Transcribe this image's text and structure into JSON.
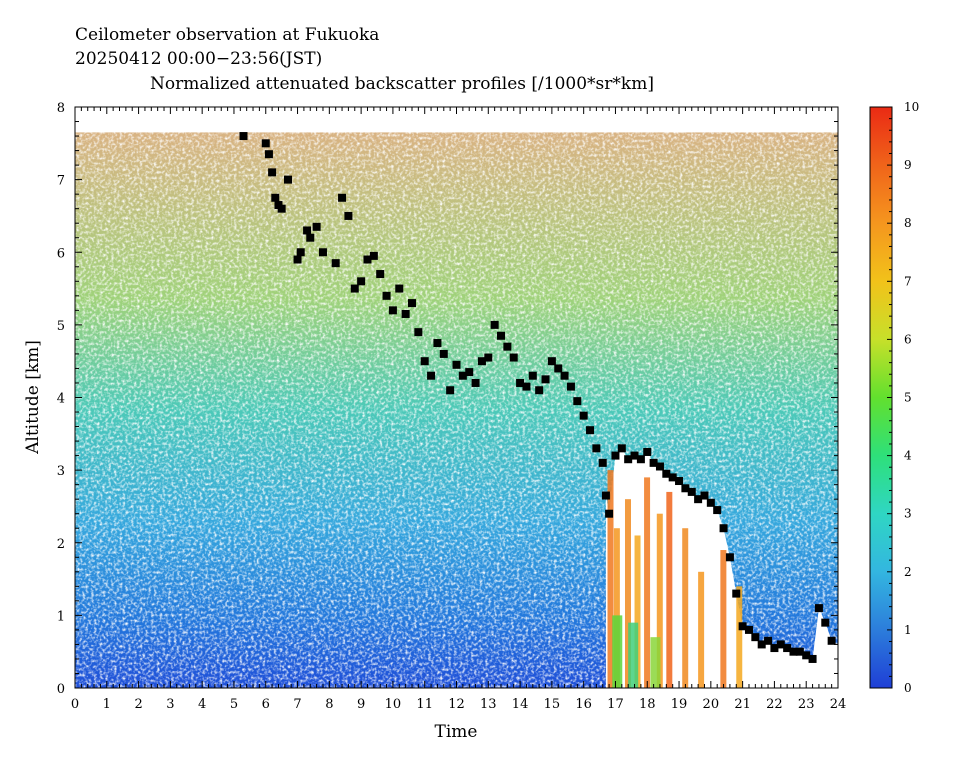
{
  "chart_data": {
    "type": "heatmap",
    "title_lines": [
      "Ceilometer observation at Fukuoka",
      "20250412  00:00−23:56(JST)",
      "Normalized attenuated backscatter profiles [/1000*sr*km]"
    ],
    "xlabel": "Time",
    "ylabel": "Altitude [km]",
    "xlim": [
      0,
      24
    ],
    "ylim": [
      0,
      8
    ],
    "data_top_altitude": 7.65,
    "xticks": [
      "0",
      "1",
      "2",
      "3",
      "4",
      "5",
      "6",
      "7",
      "8",
      "9",
      "10",
      "11",
      "12",
      "13",
      "14",
      "15",
      "16",
      "17",
      "18",
      "19",
      "20",
      "21",
      "22",
      "23",
      "24"
    ],
    "yticks": [
      "0",
      "1",
      "2",
      "3",
      "4",
      "5",
      "6",
      "7",
      "8"
    ],
    "colorbar": {
      "range": [
        0,
        10
      ],
      "ticks": [
        "0",
        "1",
        "2",
        "3",
        "4",
        "5",
        "6",
        "7",
        "8",
        "9",
        "10"
      ],
      "colors": [
        "#1f3fd6",
        "#2c7ddb",
        "#33b6e0",
        "#2fd6c3",
        "#2ee07a",
        "#62e02e",
        "#c7e02a",
        "#f2c21a",
        "#f5961e",
        "#f0641a",
        "#ea2a14"
      ]
    },
    "grid": false,
    "legend": "none",
    "cloud_base_marker": "black-square",
    "cloud_base": {
      "x": [
        5.3,
        6.0,
        6.1,
        6.2,
        6.3,
        6.4,
        6.5,
        6.7,
        7.0,
        7.1,
        7.3,
        7.4,
        7.6,
        7.8,
        8.2,
        8.4,
        8.6,
        8.8,
        9.0,
        9.2,
        9.4,
        9.6,
        9.8,
        10.0,
        10.2,
        10.4,
        10.6,
        10.8,
        11.0,
        11.2,
        11.4,
        11.6,
        11.8,
        12.0,
        12.2,
        12.4,
        12.6,
        12.8,
        13.0,
        13.2,
        13.4,
        13.6,
        13.8,
        14.0,
        14.2,
        14.4,
        14.6,
        14.8,
        15.0,
        15.2,
        15.4,
        15.6,
        15.8,
        16.0,
        16.2,
        16.4,
        16.6,
        16.7,
        16.8,
        17.0,
        17.2,
        17.4,
        17.6,
        17.8,
        18.0,
        18.2,
        18.4,
        18.6,
        18.8,
        19.0,
        19.2,
        19.4,
        19.6,
        19.8,
        20.0,
        20.2,
        20.4,
        20.6,
        20.8,
        21.0,
        21.2,
        21.4,
        21.6,
        21.8,
        22.0,
        22.2,
        22.4,
        22.6,
        22.8,
        23.0,
        23.2,
        23.4,
        23.6,
        23.8
      ],
      "y": [
        7.6,
        7.5,
        7.35,
        7.1,
        6.75,
        6.65,
        6.6,
        7.0,
        5.9,
        6.0,
        6.3,
        6.2,
        6.35,
        6.0,
        5.85,
        6.75,
        6.5,
        5.5,
        5.6,
        5.9,
        5.95,
        5.7,
        5.4,
        5.2,
        5.5,
        5.15,
        5.3,
        4.9,
        4.5,
        4.3,
        4.75,
        4.6,
        4.1,
        4.45,
        4.3,
        4.35,
        4.2,
        4.5,
        4.55,
        5.0,
        4.85,
        4.7,
        4.55,
        4.2,
        4.15,
        4.3,
        4.1,
        4.25,
        4.5,
        4.4,
        4.3,
        4.15,
        3.95,
        3.75,
        3.55,
        3.3,
        3.1,
        2.65,
        2.4,
        3.2,
        3.3,
        3.15,
        3.2,
        3.15,
        3.25,
        3.1,
        3.05,
        2.95,
        2.9,
        2.85,
        2.75,
        2.7,
        2.6,
        2.65,
        2.55,
        2.45,
        2.2,
        1.8,
        1.3,
        0.85,
        0.8,
        0.7,
        0.6,
        0.65,
        0.55,
        0.6,
        0.55,
        0.5,
        0.5,
        0.45,
        0.4,
        1.1,
        0.9,
        0.65
      ]
    }
  }
}
